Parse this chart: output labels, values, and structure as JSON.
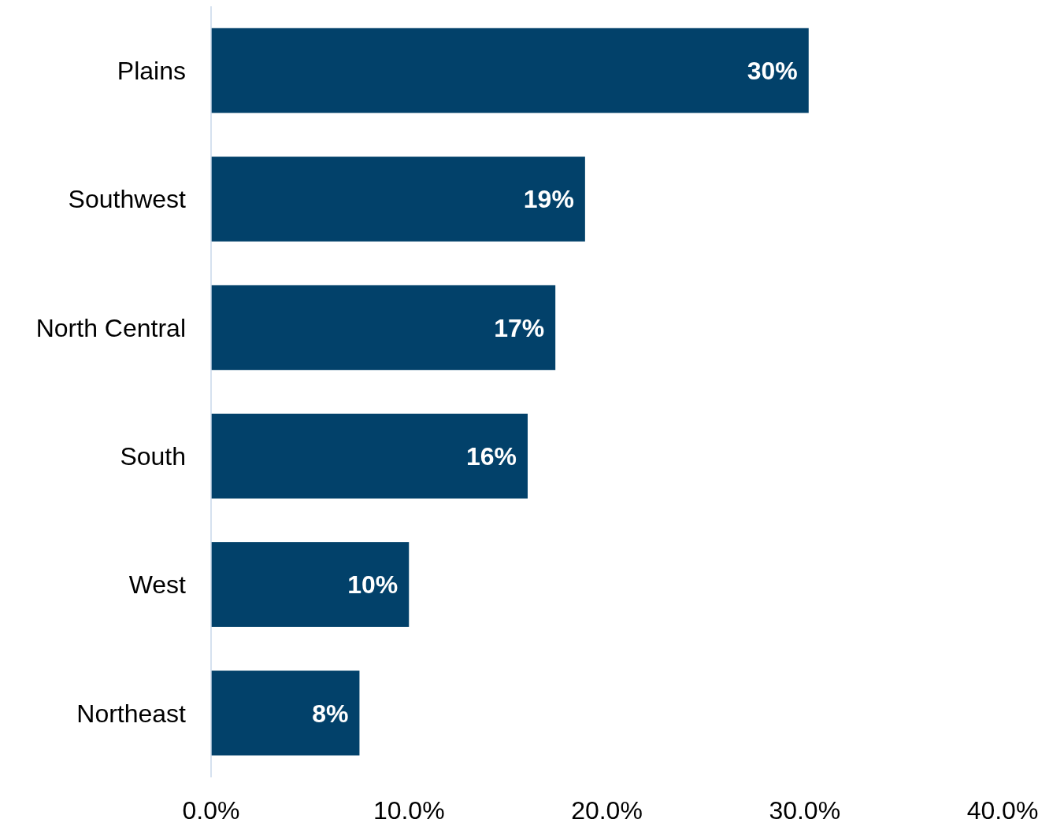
{
  "chart_data": {
    "type": "bar",
    "orientation": "horizontal",
    "categories": [
      "Plains",
      "Southwest",
      "North Central",
      "South",
      "West",
      "Northeast"
    ],
    "values": [
      30.2,
      18.9,
      17.4,
      16.0,
      10.0,
      7.5
    ],
    "value_labels": [
      "30%",
      "19%",
      "17%",
      "16%",
      "10%",
      "8%"
    ],
    "color": "#02416a",
    "xlim": [
      0,
      40
    ],
    "xticks": [
      {
        "value": 0,
        "label": "0.0%"
      },
      {
        "value": 10,
        "label": "10.0%"
      },
      {
        "value": 20,
        "label": "20.0%"
      },
      {
        "value": 30,
        "label": "30.0%"
      },
      {
        "value": 40,
        "label": "40.0%"
      }
    ],
    "grid": false
  }
}
